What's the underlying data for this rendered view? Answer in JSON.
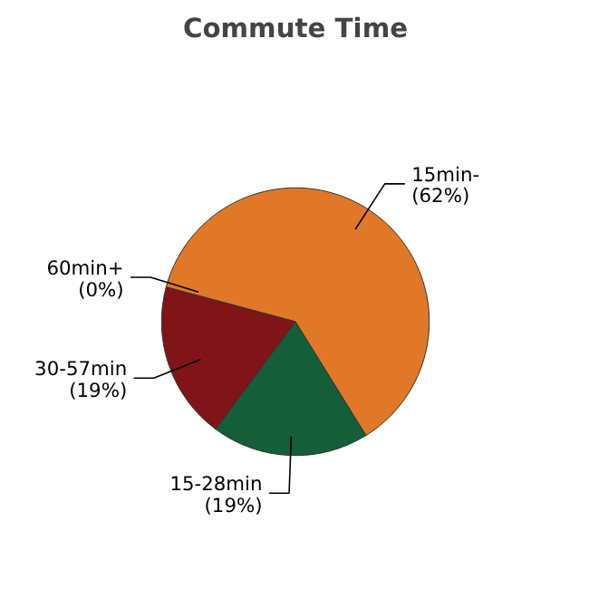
{
  "chart_data": {
    "type": "pie",
    "title": "Commute Time",
    "categories": [
      "15min-",
      "15-28min",
      "30-57min",
      "60min+"
    ],
    "values": [
      62,
      19,
      19,
      0
    ],
    "value_labels": [
      "(62%)",
      "(19%)",
      "(19%)",
      "(0%)"
    ],
    "colors": [
      "#e07828",
      "#145e3a",
      "#801418",
      "#c0392b"
    ]
  }
}
